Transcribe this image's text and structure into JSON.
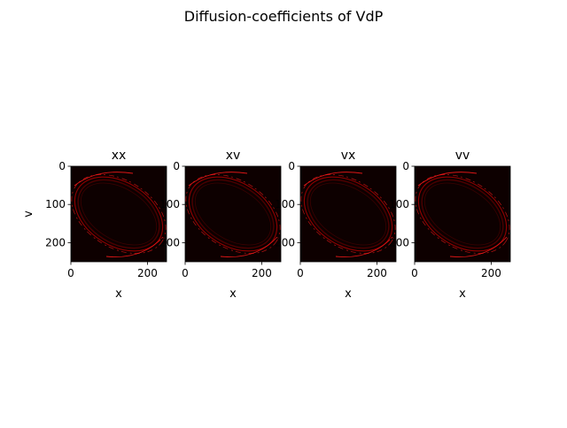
{
  "figure": {
    "suptitle": "Diffusion-coefficients of VdP"
  },
  "colors": {
    "background": "#0d0000",
    "trace_dim": "#5a0000",
    "trace_mid": "#a00000",
    "trace_bright": "#ff1a1a",
    "axis": "#000000"
  },
  "chart_data": [
    {
      "type": "heatmap",
      "title": "xx",
      "xlabel": "x",
      "ylabel": "v",
      "xlim": [
        0,
        250
      ],
      "ylim": [
        250,
        0
      ],
      "xticks": [
        0,
        200
      ],
      "yticks": [
        0,
        100,
        200
      ],
      "colormap": "hot",
      "grid": false
    },
    {
      "type": "heatmap",
      "title": "xv",
      "xlabel": "x",
      "ylabel": "",
      "xlim": [
        0,
        250
      ],
      "ylim": [
        250,
        0
      ],
      "xticks": [
        0,
        200
      ],
      "yticks": [
        0,
        100,
        200
      ],
      "colormap": "hot",
      "grid": false
    },
    {
      "type": "heatmap",
      "title": "vx",
      "xlabel": "x",
      "ylabel": "",
      "xlim": [
        0,
        250
      ],
      "ylim": [
        250,
        0
      ],
      "xticks": [
        0,
        200
      ],
      "yticks": [
        0,
        100,
        200
      ],
      "colormap": "hot",
      "grid": false
    },
    {
      "type": "heatmap",
      "title": "vv",
      "xlabel": "x",
      "ylabel": "",
      "xlim": [
        0,
        250
      ],
      "ylim": [
        250,
        0
      ],
      "xticks": [
        0,
        200
      ],
      "yticks": [
        0,
        100,
        200
      ],
      "colormap": "hot",
      "grid": false
    }
  ]
}
